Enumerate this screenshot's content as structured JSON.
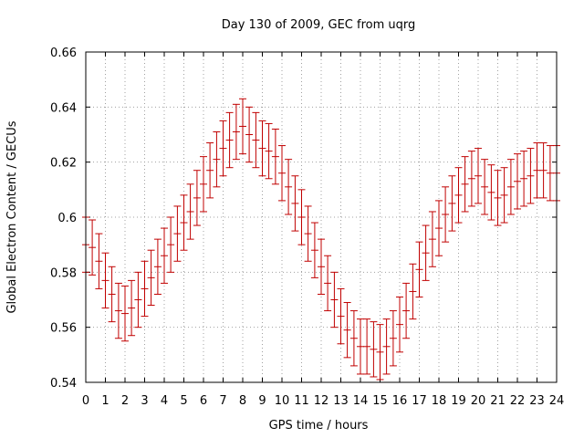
{
  "chart_data": {
    "type": "scatter",
    "style": "errorbars",
    "title": "Day 130 of 2009, GEC from uqrg",
    "xlabel": "GPS time / hours",
    "ylabel": "Global Electron Content / GECUs",
    "xlim": [
      0,
      24
    ],
    "ylim": [
      0.54,
      0.66
    ],
    "xticks": [
      "0",
      "1",
      "2",
      "3",
      "4",
      "5",
      "6",
      "7",
      "8",
      "9",
      "10",
      "11",
      "12",
      "13",
      "14",
      "15",
      "16",
      "17",
      "18",
      "19",
      "20",
      "21",
      "22",
      "23",
      "24"
    ],
    "yticks": [
      "0.54",
      "0.56",
      "0.58",
      "0.6",
      "0.62",
      "0.64",
      "0.66"
    ],
    "grid": true,
    "color": "#c00000",
    "err": 0.01,
    "x": [
      0,
      0.33,
      0.67,
      1,
      1.33,
      1.67,
      2,
      2.33,
      2.67,
      3,
      3.33,
      3.67,
      4,
      4.33,
      4.67,
      5,
      5.33,
      5.67,
      6,
      6.33,
      6.67,
      7,
      7.33,
      7.67,
      8,
      8.33,
      8.67,
      9,
      9.33,
      9.67,
      10,
      10.33,
      10.67,
      11,
      11.33,
      11.67,
      12,
      12.33,
      12.67,
      13,
      13.33,
      13.67,
      14,
      14.33,
      14.67,
      15,
      15.33,
      15.67,
      16,
      16.33,
      16.67,
      17,
      17.33,
      17.67,
      18,
      18.33,
      18.67,
      19,
      19.33,
      19.67,
      20,
      20.33,
      20.67,
      21,
      21.33,
      21.67,
      22,
      22.33,
      22.67,
      23,
      23.33,
      23.67,
      24
    ],
    "y": [
      0.59,
      0.589,
      0.584,
      0.577,
      0.572,
      0.566,
      0.565,
      0.567,
      0.57,
      0.574,
      0.578,
      0.582,
      0.586,
      0.59,
      0.594,
      0.598,
      0.602,
      0.607,
      0.612,
      0.617,
      0.621,
      0.625,
      0.628,
      0.631,
      0.633,
      0.63,
      0.628,
      0.625,
      0.624,
      0.622,
      0.616,
      0.611,
      0.605,
      0.6,
      0.594,
      0.588,
      0.582,
      0.576,
      0.57,
      0.564,
      0.559,
      0.556,
      0.553,
      0.553,
      0.552,
      0.551,
      0.553,
      0.556,
      0.561,
      0.566,
      0.573,
      0.581,
      0.587,
      0.592,
      0.596,
      0.601,
      0.605,
      0.608,
      0.612,
      0.614,
      0.615,
      0.611,
      0.609,
      0.607,
      0.608,
      0.611,
      0.613,
      0.614,
      0.615,
      0.617,
      0.617,
      0.616,
      0.616
    ]
  }
}
